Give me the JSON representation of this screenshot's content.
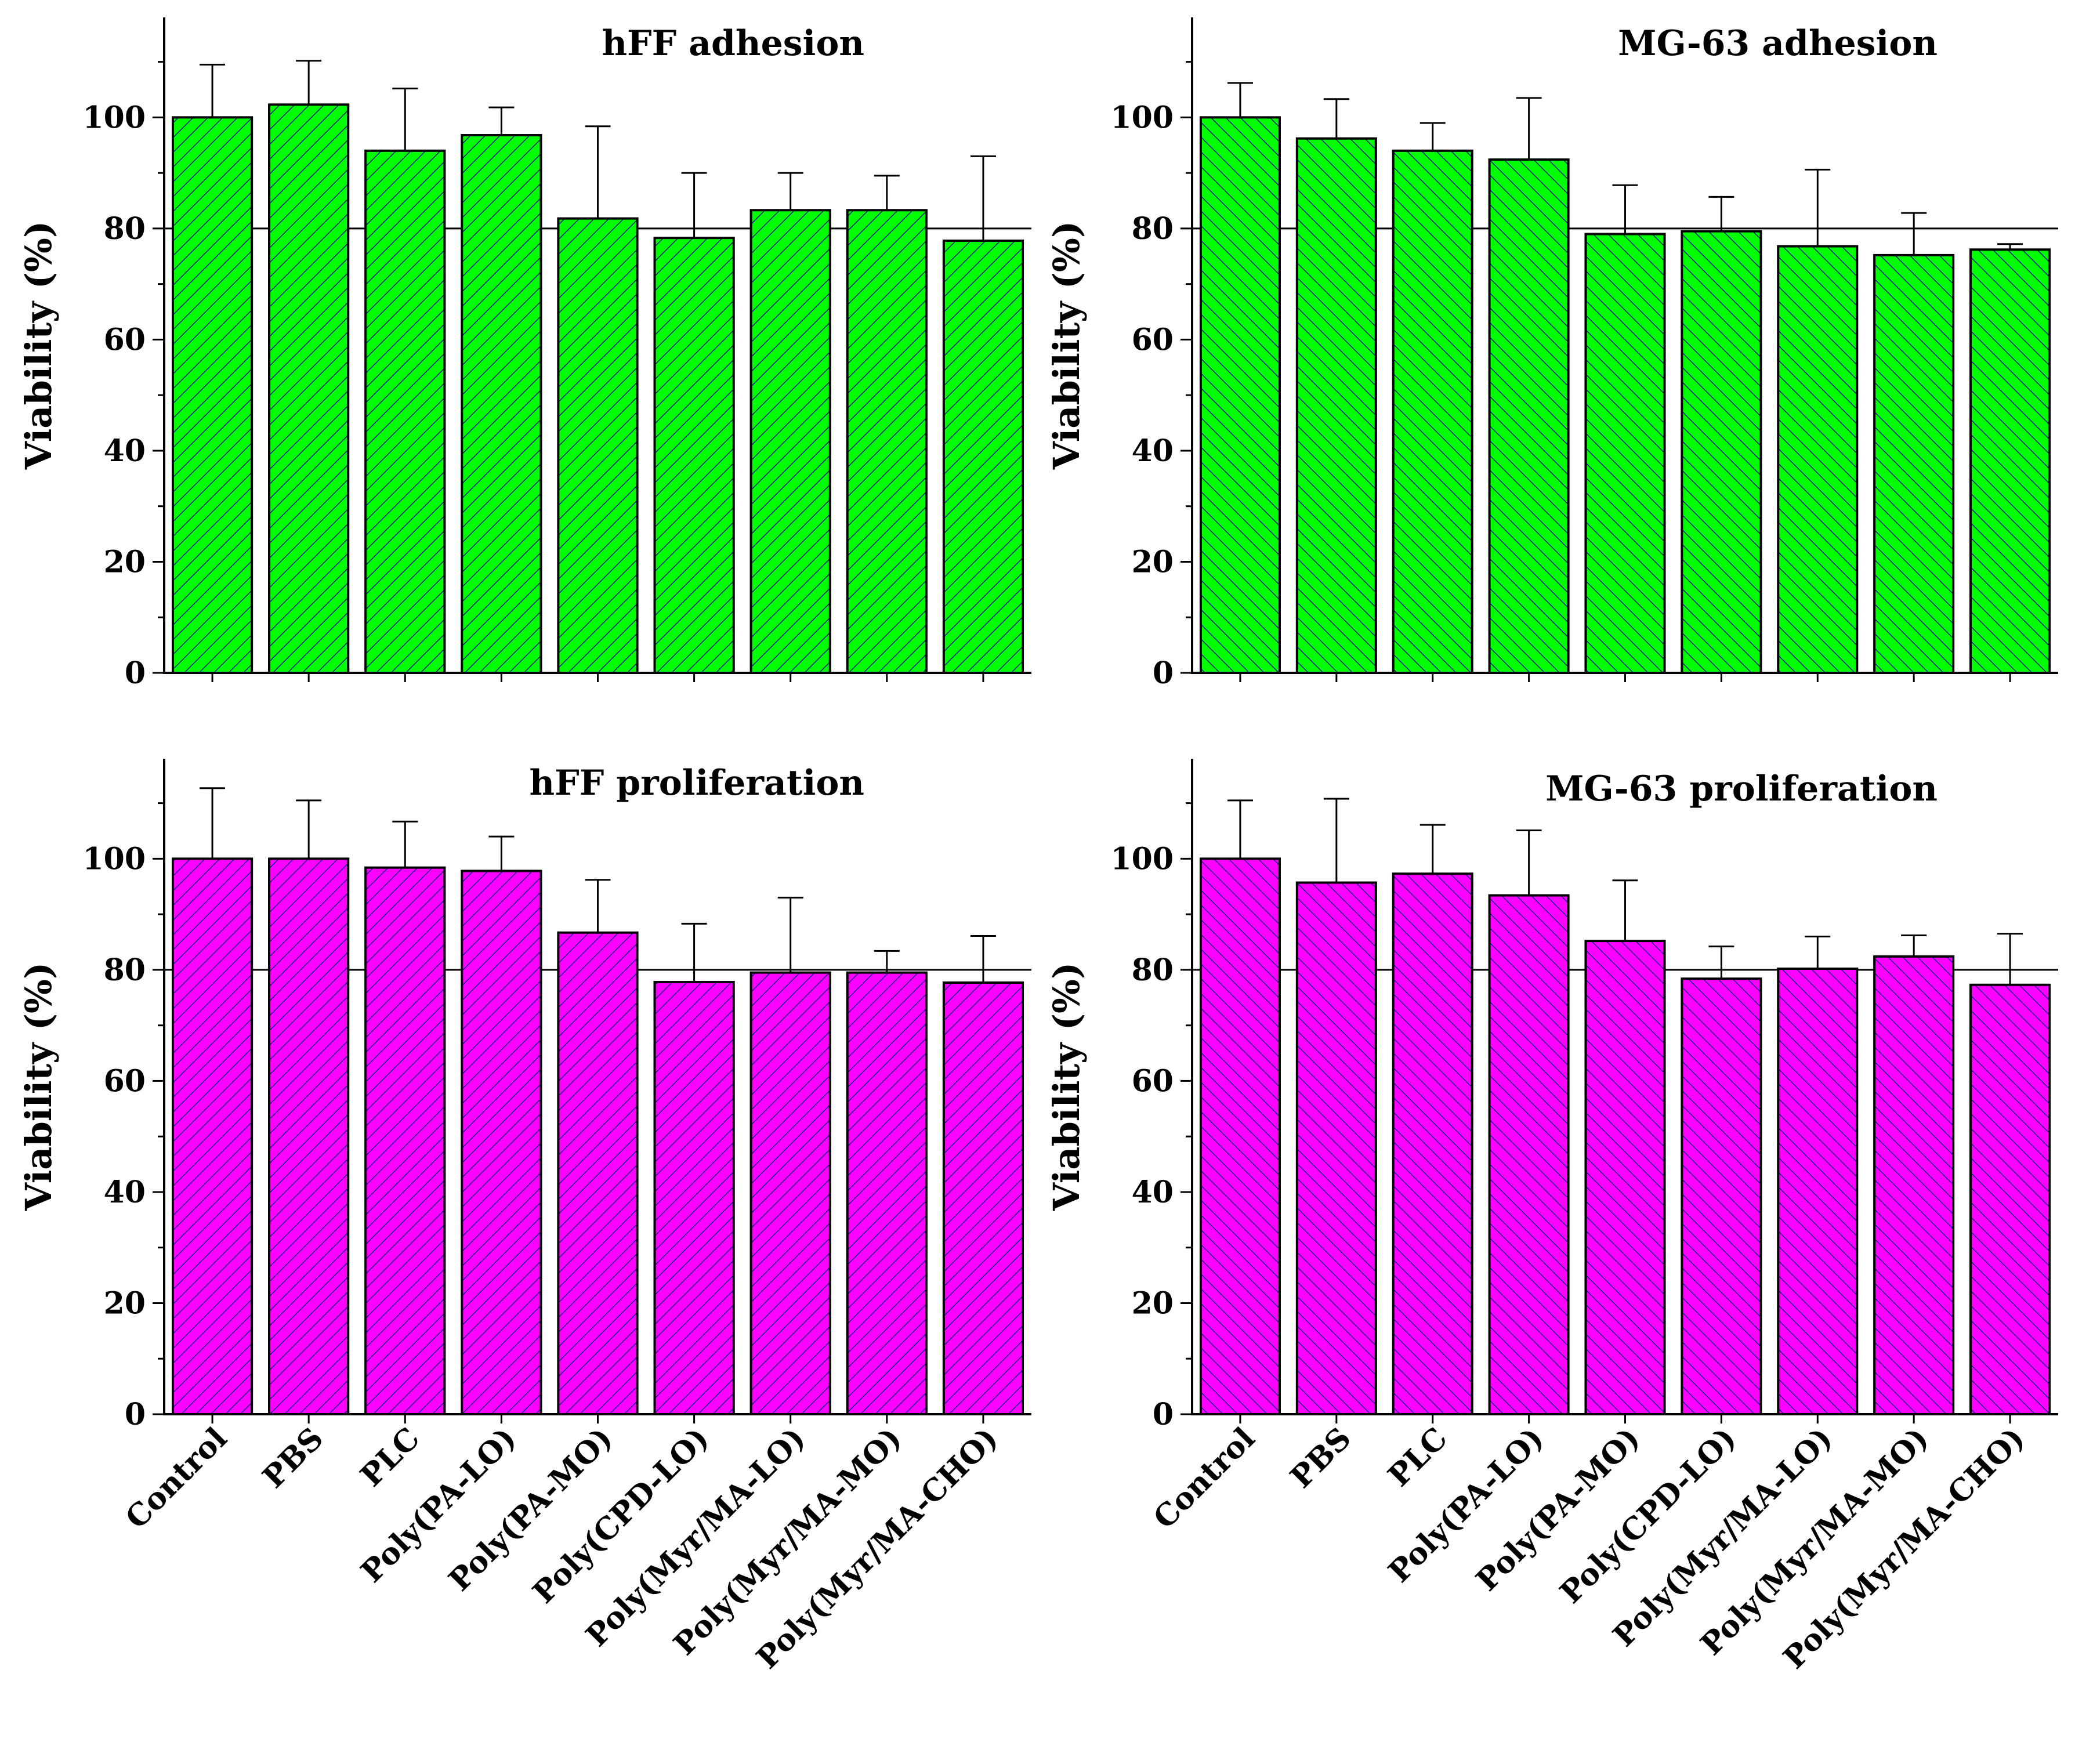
{
  "figure": {
    "bar_colors": {
      "adhesion": "#00ff00",
      "proliferation": "#ff00ff"
    },
    "hatch_color": "#1a1a8c",
    "edge_color": "#000000"
  },
  "chart_data": [
    {
      "id": "hff_adhesion",
      "type": "bar",
      "title": "hFF adhesion",
      "ylabel": "Viability (%)",
      "xlabel": "",
      "ylim": [
        0,
        118
      ],
      "yticks": [
        0,
        20,
        40,
        60,
        80,
        100
      ],
      "reference_line": 80,
      "hatch": "forward",
      "color": "#00ff00",
      "categories": [
        "Control",
        "PBS",
        "PLC",
        "Poly(PA-LO)",
        "Poly(PA-MO)",
        "Poly(CPD-LO)",
        "Poly(Myr/MA-LO)",
        "Poly(Myr/MA-MO)",
        "Poly(Myr/MA-CHO)"
      ],
      "values": [
        100,
        102.3,
        94,
        96.8,
        81.8,
        78.3,
        83.3,
        83.3,
        77.8
      ],
      "errors": [
        9.5,
        7.9,
        11.2,
        5.0,
        16.6,
        11.7,
        6.7,
        6.2,
        15.2
      ],
      "show_tick_labels": false
    },
    {
      "id": "mg63_adhesion",
      "type": "bar",
      "title": "MG-63 adhesion",
      "ylabel": "Viability (%)",
      "xlabel": "",
      "ylim": [
        0,
        118
      ],
      "yticks": [
        0,
        20,
        40,
        60,
        80,
        100
      ],
      "reference_line": 80,
      "hatch": "backward",
      "color": "#00ff00",
      "categories": [
        "Control",
        "PBS",
        "PLC",
        "Poly(PA-LO)",
        "Poly(PA-MO)",
        "Poly(CPD-LO)",
        "Poly(Myr/MA-LO)",
        "Poly(Myr/MA-MO)",
        "Poly(Myr/MA-CHO)"
      ],
      "values": [
        100,
        96.2,
        94,
        92.4,
        79,
        79.5,
        76.8,
        75.2,
        76.2
      ],
      "errors": [
        6.2,
        7.1,
        5.0,
        11.1,
        8.8,
        6.2,
        13.8,
        7.6,
        1.0
      ],
      "show_tick_labels": false
    },
    {
      "id": "hff_proliferation",
      "type": "bar",
      "title": "hFF proliferation",
      "ylabel": "Viability (%)",
      "xlabel": "",
      "ylim": [
        0,
        118
      ],
      "yticks": [
        0,
        20,
        40,
        60,
        80,
        100
      ],
      "reference_line": 80,
      "hatch": "forward",
      "color": "#ff00ff",
      "categories": [
        "Control",
        "PBS",
        "PLC",
        "Poly(PA-LO)",
        "Poly(PA-MO)",
        "Poly(CPD-LO)",
        "Poly(Myr/MA-LO)",
        "Poly(Myr/MA-MO)",
        "Poly(Myr/MA-CHO)"
      ],
      "values": [
        100,
        100,
        98.4,
        97.8,
        86.7,
        77.8,
        79.5,
        79.5,
        77.7
      ],
      "errors": [
        12.7,
        10.5,
        8.3,
        6.2,
        9.5,
        10.5,
        13.5,
        3.9,
        8.4
      ],
      "show_tick_labels": true
    },
    {
      "id": "mg63_proliferation",
      "type": "bar",
      "title": "MG-63 proliferation",
      "ylabel": "Viability (%)",
      "xlabel": "",
      "ylim": [
        0,
        118
      ],
      "yticks": [
        0,
        20,
        40,
        60,
        80,
        100
      ],
      "reference_line": 80,
      "hatch": "backward",
      "color": "#ff00ff",
      "categories": [
        "Control",
        "PBS",
        "PLC",
        "Poly(PA-LO)",
        "Poly(PA-MO)",
        "Poly(CPD-LO)",
        "Poly(Myr/MA-LO)",
        "Poly(Myr/MA-MO)",
        "Poly(Myr/MA-CHO)"
      ],
      "values": [
        100,
        95.7,
        97.3,
        93.4,
        85.2,
        78.4,
        80.2,
        82.4,
        77.3
      ],
      "errors": [
        10.5,
        15.1,
        8.8,
        11.7,
        10.9,
        5.8,
        5.8,
        3.8,
        9.2
      ],
      "show_tick_labels": true
    }
  ]
}
